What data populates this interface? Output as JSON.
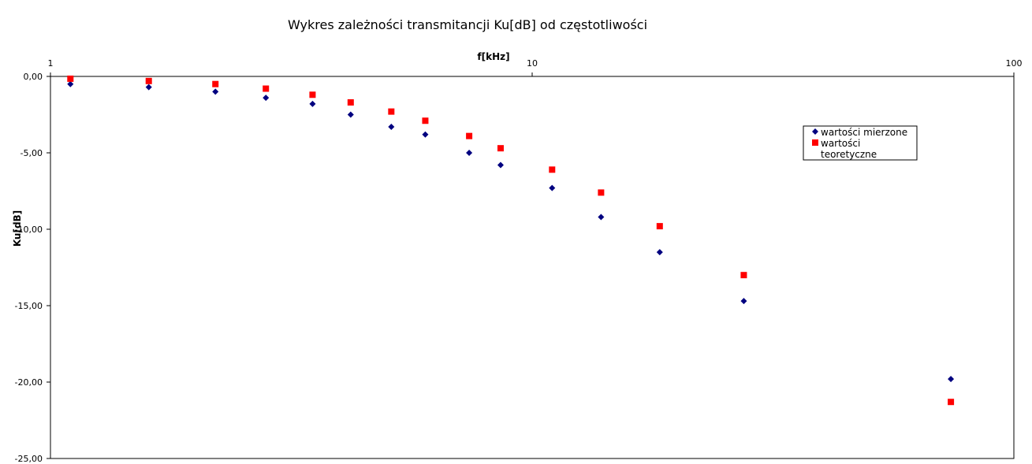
{
  "chart_data": {
    "type": "scatter",
    "title": "Wykres zależności transmitancji Ku[dB] od częstotliwości",
    "xlabel": "f[kHz]",
    "ylabel": "Ku[dB]",
    "x_scale": "log",
    "xlim": [
      1,
      100
    ],
    "ylim": [
      -25,
      0
    ],
    "x_ticks": [
      1,
      10,
      100
    ],
    "x_tick_labels": [
      "1",
      "10",
      "100"
    ],
    "y_ticks": [
      0,
      -5,
      -10,
      -15,
      -20,
      -25
    ],
    "y_tick_labels": [
      "0,00",
      "-5,00",
      "-10,00",
      "-15,00",
      "-20,00",
      "-25,00"
    ],
    "grid": false,
    "legend_position": "right",
    "series": [
      {
        "name": "wartości mierzone",
        "marker": "diamond",
        "color": "#000080",
        "x": [
          1.1,
          1.6,
          2.2,
          2.8,
          3.5,
          4.2,
          5.1,
          6.0,
          7.4,
          8.6,
          11.0,
          13.9,
          18.4,
          27.5,
          74.0
        ],
        "y": [
          -0.5,
          -0.7,
          -1.0,
          -1.4,
          -1.8,
          -2.5,
          -3.3,
          -3.8,
          -5.0,
          -5.8,
          -7.3,
          -9.2,
          -11.5,
          -14.7,
          -19.8
        ]
      },
      {
        "name": "wartości teoretyczne",
        "marker": "square",
        "color": "#ff0000",
        "x": [
          1.1,
          1.6,
          2.2,
          2.8,
          3.5,
          4.2,
          5.1,
          6.0,
          7.4,
          8.6,
          11.0,
          13.9,
          18.4,
          27.5,
          74.0
        ],
        "y": [
          -0.15,
          -0.3,
          -0.5,
          -0.8,
          -1.2,
          -1.7,
          -2.3,
          -2.9,
          -3.9,
          -4.7,
          -6.1,
          -7.6,
          -9.8,
          -13.0,
          -21.3
        ]
      }
    ]
  }
}
